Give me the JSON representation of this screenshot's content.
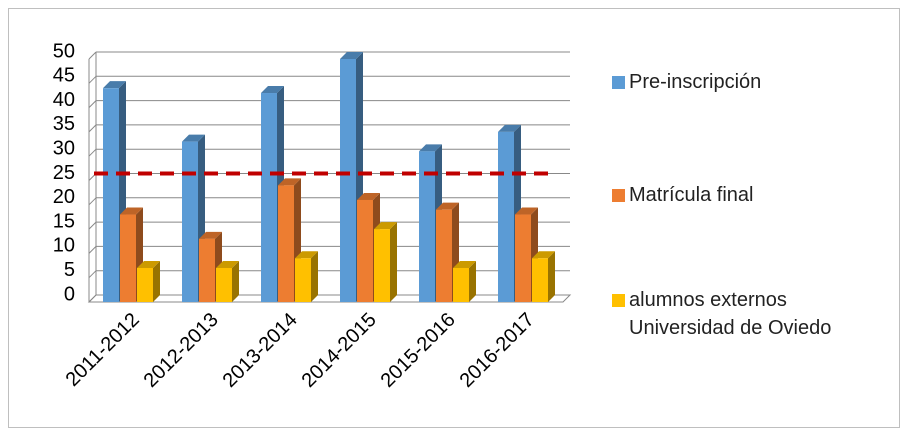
{
  "chart_data": {
    "type": "bar3d",
    "categories": [
      "2011-2012",
      "2012-2013",
      "2013-2014",
      "2014-2015",
      "2015-2016",
      "2016-2017"
    ],
    "series": [
      {
        "name": "Pre-inscripción",
        "color": "#5b9bd5",
        "values": [
          44,
          33,
          43,
          50,
          31,
          35
        ]
      },
      {
        "name": "Matrícula final",
        "color": "#ed7d31",
        "values": [
          18,
          13,
          24,
          21,
          19,
          18
        ]
      },
      {
        "name": "alumnos externos Universidad de Oviedo",
        "color": "#ffc000",
        "values": [
          7,
          7,
          9,
          15,
          7,
          9
        ]
      }
    ],
    "ylim": [
      0,
      50
    ],
    "yticks": [
      0,
      5,
      10,
      15,
      20,
      25,
      30,
      35,
      40,
      45,
      50
    ],
    "grid": true,
    "reference_line": {
      "value": 25,
      "color": "#c00000"
    }
  }
}
